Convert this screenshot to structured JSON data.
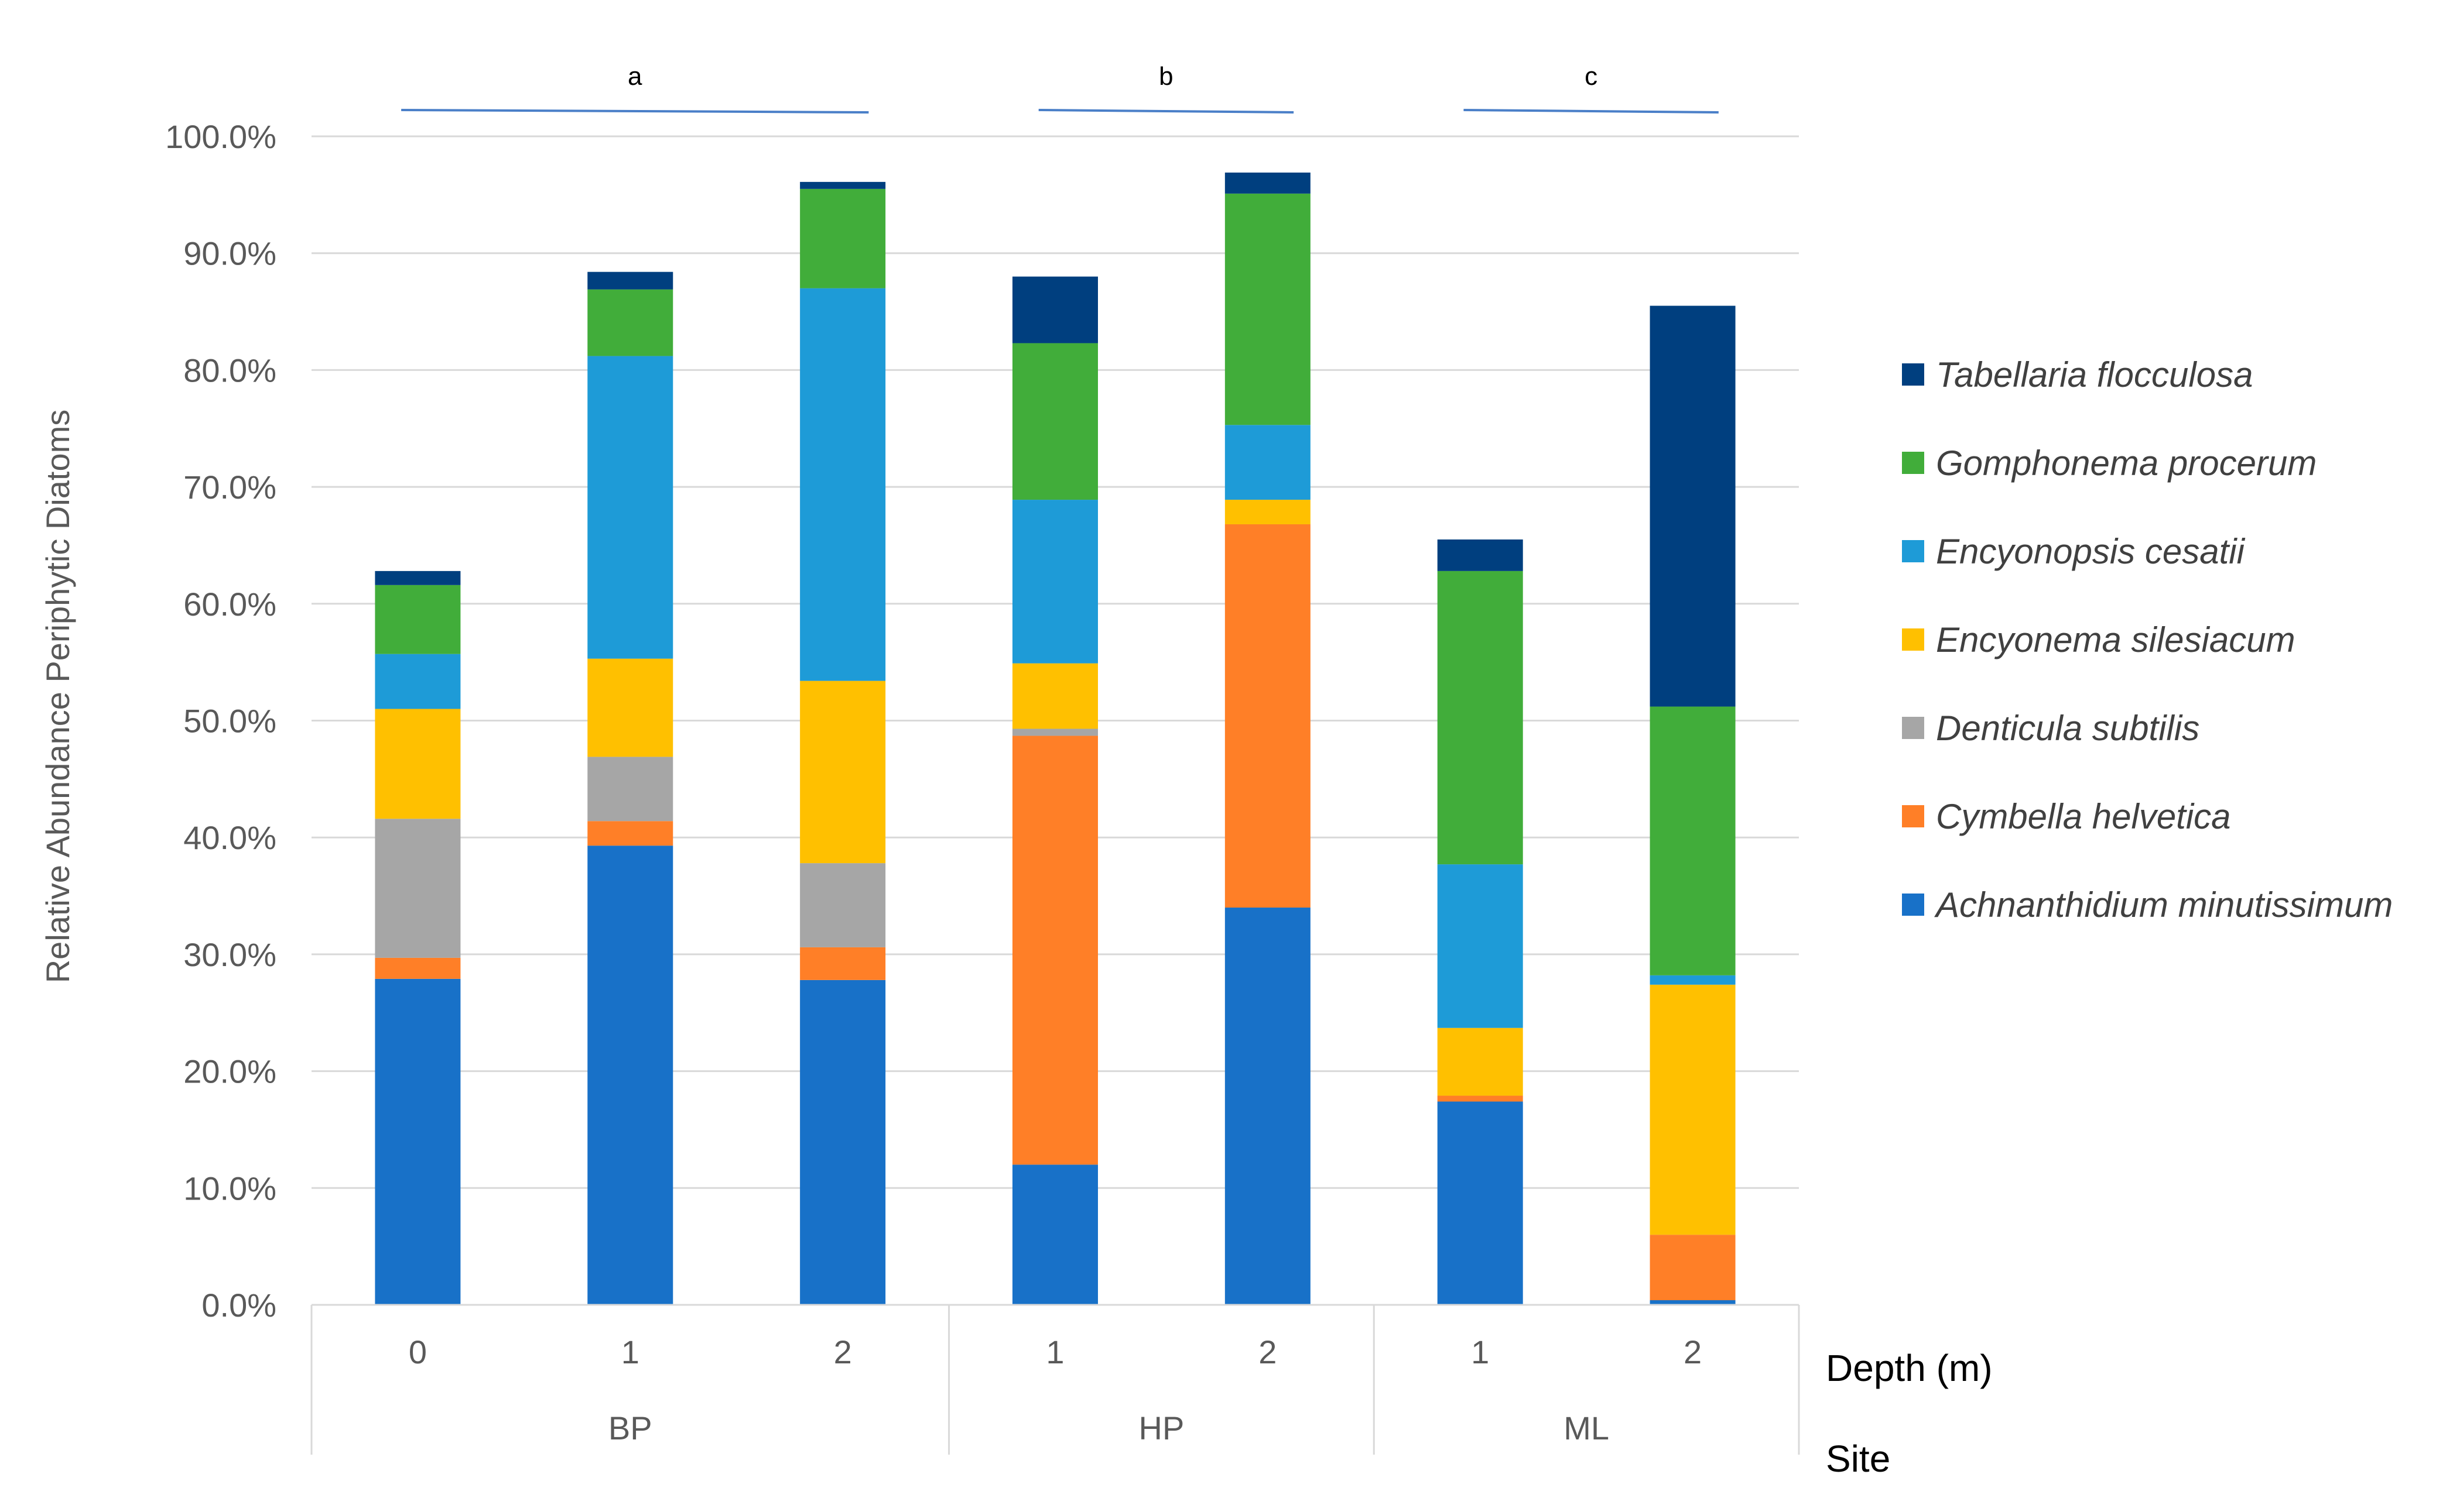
{
  "chart_data": {
    "type": "bar",
    "stacked": true,
    "title": "",
    "ylabel": "Relative Abundance Periphytic Diatoms",
    "ylim": [
      0,
      100
    ],
    "y_ticks": [
      "0.0%",
      "10.0%",
      "20.0%",
      "30.0%",
      "40.0%",
      "50.0%",
      "60.0%",
      "70.0%",
      "80.0%",
      "90.0%",
      "100.0%"
    ],
    "grid": true,
    "legend_position": "right",
    "x_axis_title_inner": "Depth (m)",
    "x_axis_title_outer": "Site",
    "categories": [
      "0",
      "1",
      "2",
      "1",
      "2",
      "1",
      "2"
    ],
    "sites": [
      {
        "name": "BP",
        "count": 3,
        "annotation": "a"
      },
      {
        "name": "HP",
        "count": 2,
        "annotation": "b"
      },
      {
        "name": "ML",
        "count": 2,
        "annotation": "c"
      }
    ],
    "series": [
      {
        "name": "Achnanthidium minutissimum",
        "color": "#1871C8",
        "values": [
          27.9,
          39.3,
          27.8,
          12.0,
          34.0,
          17.4,
          0.4
        ]
      },
      {
        "name": "Cymbella helvetica",
        "color": "#FF7F27",
        "values": [
          1.8,
          2.1,
          2.8,
          36.7,
          32.8,
          0.5,
          5.6
        ]
      },
      {
        "name": "Denticula subtilis",
        "color": "#A6A6A6",
        "values": [
          11.9,
          5.5,
          7.2,
          0.6,
          0.0,
          0.0,
          0.0
        ]
      },
      {
        "name": "Encyonema silesiacum",
        "color": "#FFC000",
        "values": [
          9.4,
          8.4,
          15.6,
          5.6,
          2.1,
          5.8,
          21.4
        ]
      },
      {
        "name": "Encyonopsis cesatii",
        "color": "#1E9BD7",
        "values": [
          4.7,
          25.9,
          33.6,
          14.0,
          6.4,
          14.0,
          0.8
        ]
      },
      {
        "name": "Gomphonema procerum",
        "color": "#41AD3A",
        "values": [
          5.9,
          5.7,
          8.5,
          13.4,
          19.8,
          25.1,
          23.0
        ]
      },
      {
        "name": "Tabellaria flocculosa",
        "color": "#003F7F",
        "values": [
          1.2,
          1.5,
          0.6,
          5.7,
          1.8,
          2.7,
          34.3
        ]
      }
    ]
  }
}
